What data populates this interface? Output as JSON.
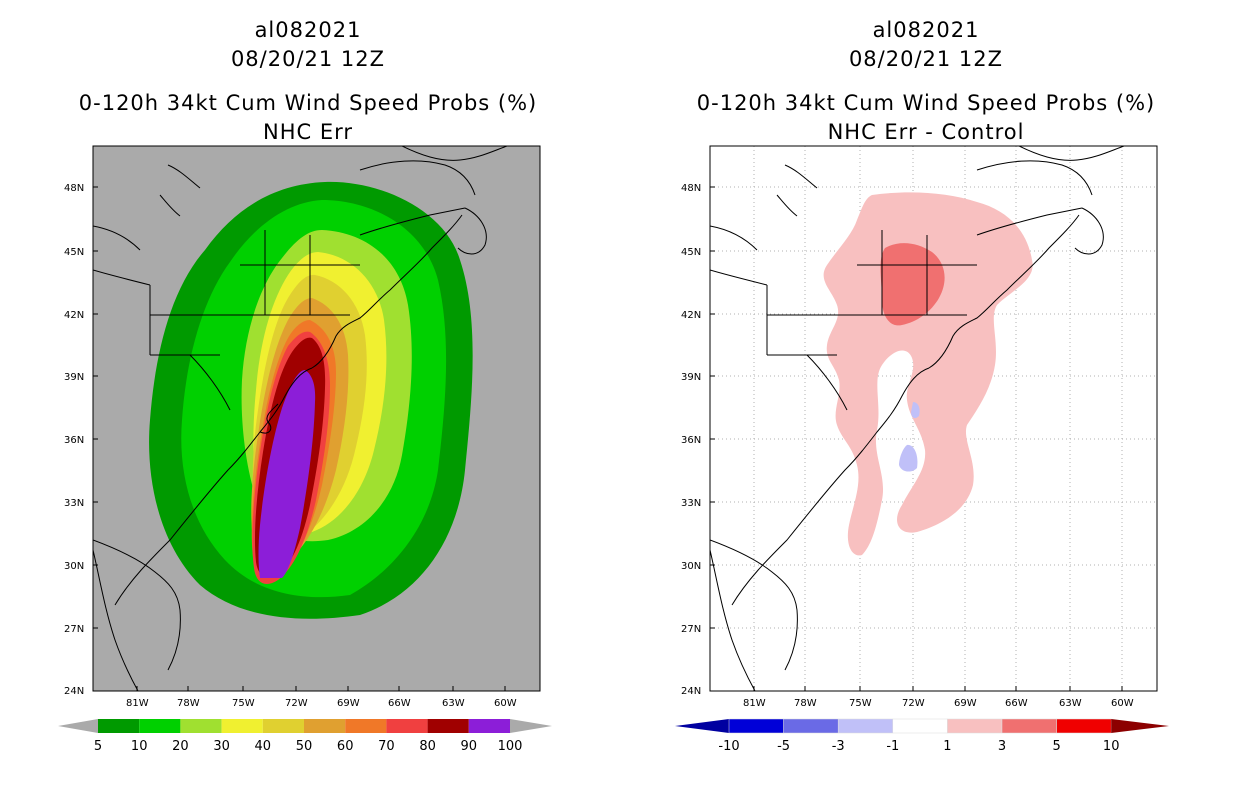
{
  "panels": [
    {
      "storm_id": "al082021",
      "datetime": "08/20/21 12Z",
      "product": "0-120h 34kt Cum Wind Speed Probs (%)",
      "subtitle": "NHC Err",
      "background": "#aaaaaa",
      "colorbar": {
        "colors": [
          "#009a00",
          "#00d000",
          "#a0e030",
          "#f0f030",
          "#e0d030",
          "#e0a030",
          "#f07828",
          "#f04040",
          "#a00000",
          "#8c1ed8"
        ],
        "end_colors": [
          "#aaaaaa",
          "#aaaaaa"
        ],
        "labels": [
          "5",
          "10",
          "20",
          "30",
          "40",
          "50",
          "60",
          "70",
          "80",
          "90",
          "100"
        ]
      }
    },
    {
      "storm_id": "al082021",
      "datetime": "08/20/21 12Z",
      "product": "0-120h 34kt Cum Wind Speed Probs (%)",
      "subtitle": "NHC Err - Control",
      "background": "#ffffff",
      "colorbar": {
        "colors": [
          "#0000d8",
          "#6a6ae6",
          "#c0c0f8",
          "#ffffff",
          "#f8c0c0",
          "#f07070",
          "#f00000"
        ],
        "end_colors": [
          "#0000a0",
          "#8c0000"
        ],
        "labels": [
          "-10",
          "-5",
          "-3",
          "-1",
          "1",
          "3",
          "5",
          "10"
        ]
      }
    }
  ],
  "axes": {
    "lat_labels": [
      "48N",
      "45N",
      "42N",
      "39N",
      "36N",
      "33N",
      "30N",
      "27N",
      "24N"
    ],
    "lon_labels": [
      "81W",
      "78W",
      "75W",
      "72W",
      "69W",
      "66W",
      "63W",
      "60W"
    ]
  }
}
